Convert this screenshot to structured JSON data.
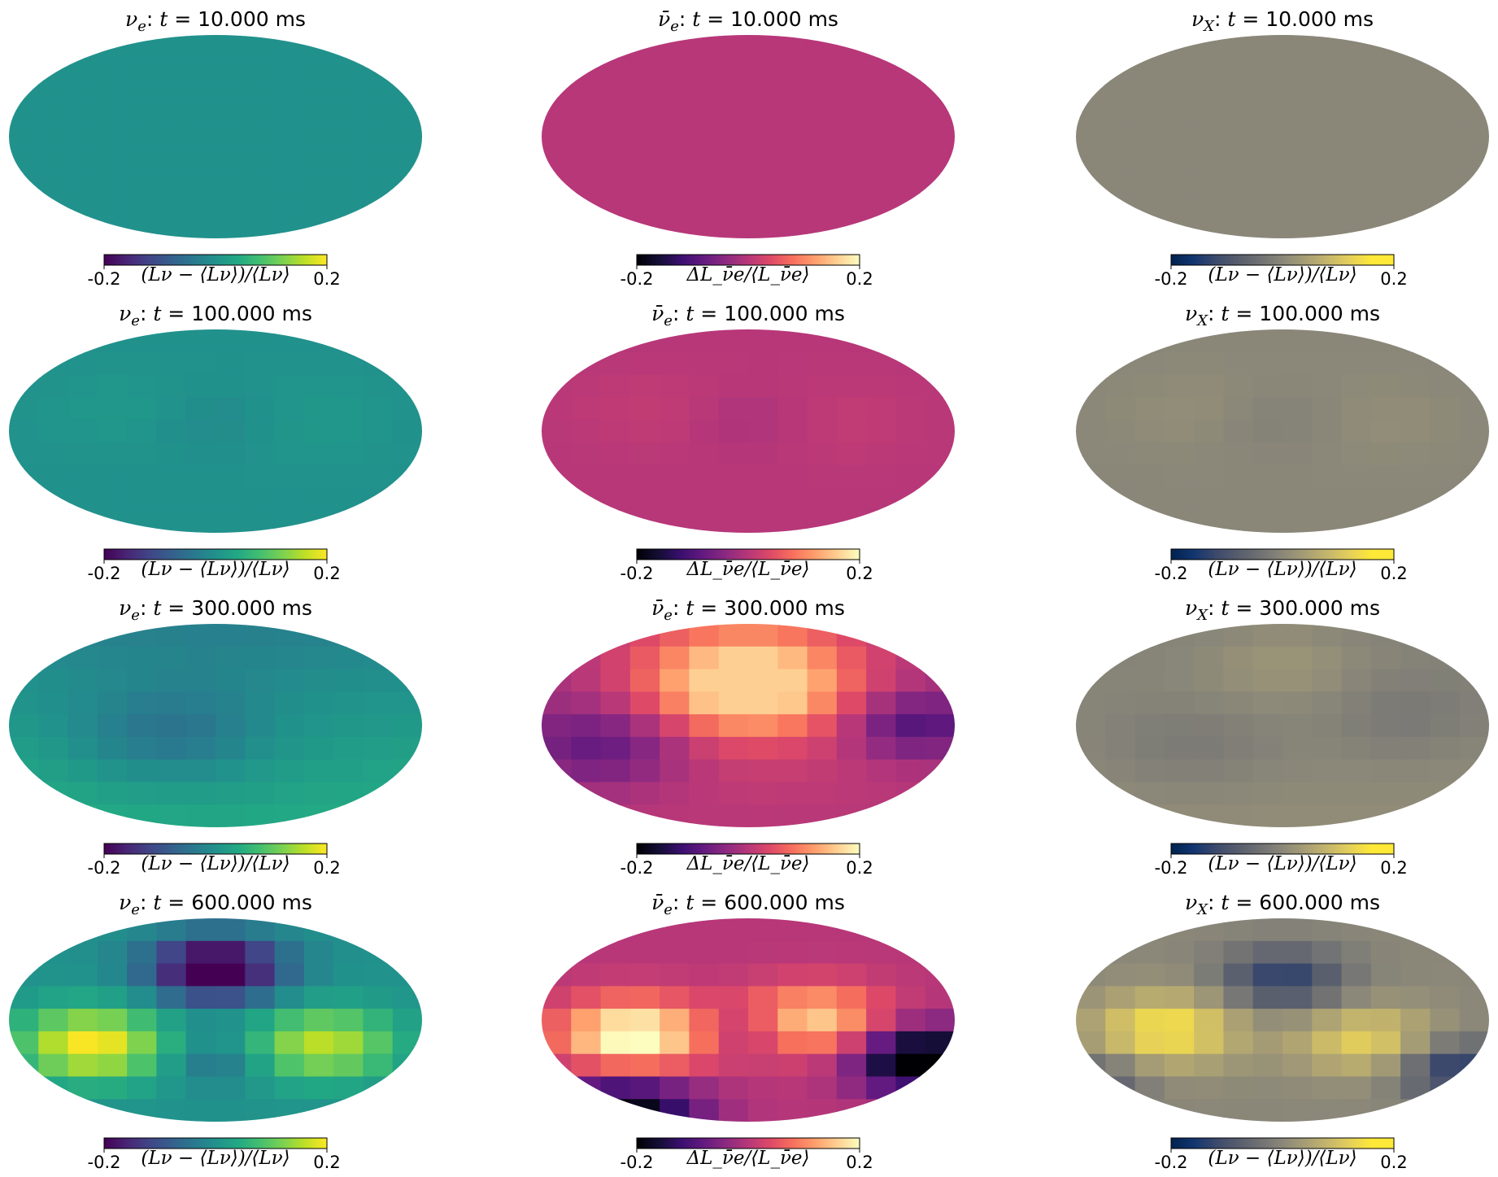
{
  "chart_data": {
    "type": "heatmap",
    "projection": "mollweide",
    "layout": {
      "rows": 4,
      "cols": 3
    },
    "colormaps": {
      "nu_e": "viridis",
      "nubar_e": "magma",
      "nu_x": "cividis"
    },
    "colorbar": {
      "min": -0.2,
      "max": 0.2,
      "tick_labels": [
        "-0.2",
        "0.2"
      ]
    },
    "colorbar_labels": {
      "nu_e": "(Lν − ⟨Lν⟩)/⟨Lν⟩",
      "nubar_e": "ΔL_ν̄e/⟨L_ν̄e⟩",
      "nu_x": "(Lν − ⟨Lν⟩)/⟨Lν⟩"
    },
    "panels": [
      {
        "row": 0,
        "col": 0,
        "species": "νe",
        "cmap": "viridis",
        "title_prefix": "νe: t = ",
        "time": "10.000",
        "unit": "ms",
        "amplitude": 0.0
      },
      {
        "row": 0,
        "col": 1,
        "species": "ν̄e",
        "cmap": "magma",
        "title_prefix": "ν̄e: t = ",
        "time": "10.000",
        "unit": "ms",
        "amplitude": 0.0
      },
      {
        "row": 0,
        "col": 2,
        "species": "νX",
        "cmap": "cividis",
        "title_prefix": "νX: t = ",
        "time": "10.000",
        "unit": "ms",
        "amplitude": 0.0
      },
      {
        "row": 1,
        "col": 0,
        "species": "νe",
        "cmap": "viridis",
        "title_prefix": "νe: t = ",
        "time": "100.000",
        "unit": "ms",
        "amplitude": 0.02
      },
      {
        "row": 1,
        "col": 1,
        "species": "ν̄e",
        "cmap": "magma",
        "title_prefix": "ν̄e: t = ",
        "time": "100.000",
        "unit": "ms",
        "amplitude": 0.02
      },
      {
        "row": 1,
        "col": 2,
        "species": "νX",
        "cmap": "cividis",
        "title_prefix": "νX: t = ",
        "time": "100.000",
        "unit": "ms",
        "amplitude": 0.02
      },
      {
        "row": 2,
        "col": 0,
        "species": "νe",
        "cmap": "viridis",
        "title_prefix": "νe: t = ",
        "time": "300.000",
        "unit": "ms",
        "amplitude": 0.08
      },
      {
        "row": 2,
        "col": 1,
        "species": "ν̄e",
        "cmap": "magma",
        "title_prefix": "ν̄e: t = ",
        "time": "300.000",
        "unit": "ms",
        "amplitude": 0.16
      },
      {
        "row": 2,
        "col": 2,
        "species": "νX",
        "cmap": "cividis",
        "title_prefix": "νX: t = ",
        "time": "300.000",
        "unit": "ms",
        "amplitude": 0.05
      },
      {
        "row": 3,
        "col": 0,
        "species": "νe",
        "cmap": "viridis",
        "title_prefix": "νe: t = ",
        "time": "600.000",
        "unit": "ms",
        "amplitude": 0.2
      },
      {
        "row": 3,
        "col": 1,
        "species": "ν̄e",
        "cmap": "magma",
        "title_prefix": "ν̄e: t = ",
        "time": "600.000",
        "unit": "ms",
        "amplitude": 0.2
      },
      {
        "row": 3,
        "col": 2,
        "species": "νX",
        "cmap": "cividis",
        "title_prefix": "νX: t = ",
        "time": "600.000",
        "unit": "ms",
        "amplitude": 0.15
      }
    ]
  }
}
